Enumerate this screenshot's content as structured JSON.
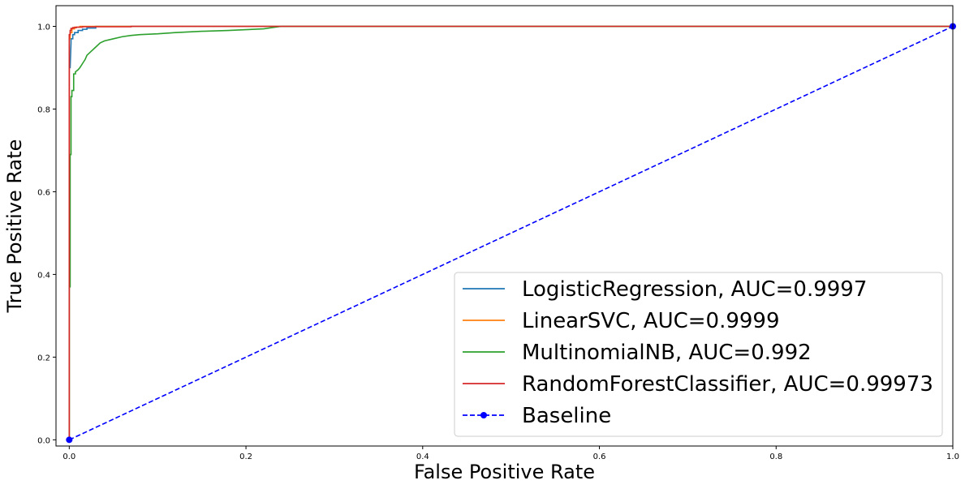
{
  "chart_data": {
    "type": "line",
    "title": "",
    "xlabel": "False Positive Rate",
    "ylabel": "True Positive Rate",
    "xlim": [
      -0.015,
      1.0
    ],
    "ylim": [
      -0.015,
      1.05
    ],
    "x_ticks": [
      0.0,
      0.2,
      0.4,
      0.6,
      0.8,
      1.0
    ],
    "y_ticks": [
      0.0,
      0.2,
      0.4,
      0.6,
      0.8,
      1.0
    ],
    "x_tick_labels": [
      "0.0",
      "0.2",
      "0.4",
      "0.6",
      "0.8",
      "1.0"
    ],
    "y_tick_labels": [
      "0.0",
      "0.2",
      "0.4",
      "0.6",
      "0.8",
      "1.0"
    ],
    "grid": false,
    "legend_position": "lower-right",
    "series": [
      {
        "name": "LogisticRegression, AUC=0.9997",
        "color": "#1f77b4",
        "style": "solid",
        "x": [
          0,
          0,
          0.001,
          0.002,
          0.002,
          0.004,
          0.004,
          0.006,
          0.006,
          0.01,
          0.01,
          0.015,
          0.015,
          0.02,
          0.02,
          0.03,
          0.03,
          1.0
        ],
        "y": [
          0,
          0.9,
          0.9,
          0.96,
          0.97,
          0.97,
          0.98,
          0.98,
          0.985,
          0.985,
          0.99,
          0.99,
          0.993,
          0.993,
          0.996,
          0.996,
          1.0,
          1.0
        ]
      },
      {
        "name": "LinearSVC, AUC=0.9999",
        "color": "#ff7f0e",
        "style": "solid",
        "x": [
          0,
          0,
          0.001,
          0.001,
          0.003,
          0.003,
          0.006,
          0.006,
          0.012,
          0.012,
          1.0
        ],
        "y": [
          0,
          0.97,
          0.97,
          0.985,
          0.985,
          0.994,
          0.994,
          0.998,
          0.998,
          1.0,
          1.0
        ]
      },
      {
        "name": "MultinomialNB, AUC=0.992",
        "color": "#2ca02c",
        "style": "solid",
        "x": [
          0,
          0,
          0.001,
          0.001,
          0.002,
          0.002,
          0.003,
          0.003,
          0.005,
          0.005,
          0.007,
          0.007,
          0.01,
          0.012,
          0.015,
          0.018,
          0.02,
          0.025,
          0.03,
          0.035,
          0.04,
          0.05,
          0.06,
          0.07,
          0.08,
          0.1,
          0.12,
          0.15,
          0.18,
          0.2,
          0.22,
          0.23,
          0.24,
          1.0
        ],
        "y": [
          0,
          0.37,
          0.37,
          0.69,
          0.69,
          0.83,
          0.83,
          0.845,
          0.845,
          0.885,
          0.885,
          0.89,
          0.895,
          0.9,
          0.91,
          0.92,
          0.93,
          0.94,
          0.95,
          0.96,
          0.965,
          0.97,
          0.975,
          0.978,
          0.98,
          0.982,
          0.985,
          0.988,
          0.99,
          0.992,
          0.994,
          0.997,
          1.0,
          1.0
        ]
      },
      {
        "name": "RandomForestClassifier, AUC=0.99973",
        "color": "#d62728",
        "style": "solid",
        "x": [
          0,
          0,
          0.001,
          0.001,
          0.002,
          0.002,
          0.004,
          0.004,
          0.008,
          0.008,
          0.015,
          0.015,
          0.07,
          0.07,
          1.0
        ],
        "y": [
          0,
          0.98,
          0.98,
          0.99,
          0.99,
          0.995,
          0.995,
          0.997,
          0.997,
          0.998,
          0.998,
          0.999,
          0.999,
          1.0,
          1.0
        ]
      },
      {
        "name": "Baseline",
        "color": "#0000ff",
        "style": "dashed",
        "marker": "circle",
        "x": [
          0,
          1
        ],
        "y": [
          0,
          1
        ]
      }
    ]
  }
}
